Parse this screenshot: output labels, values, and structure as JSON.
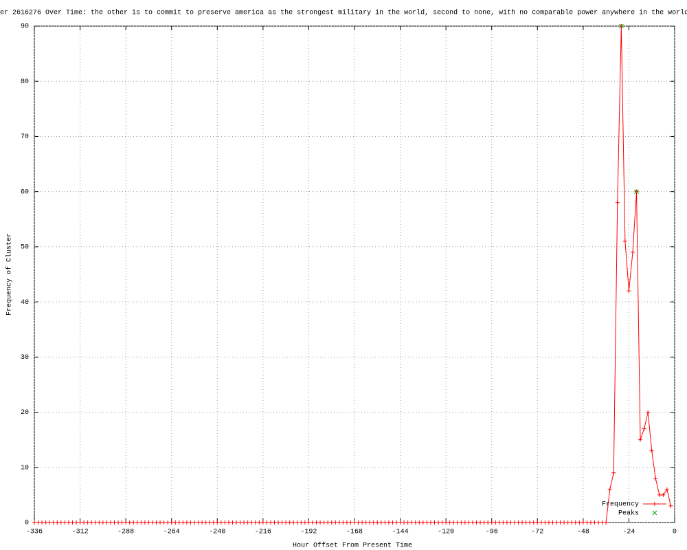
{
  "chart_data": {
    "type": "line",
    "title": "er 2616276 Over Time: the other is to commit to preserve america as the strongest military in the world, second to none, with no comparable power anywhere in the world",
    "x_label": "Hour Offset From Present Time",
    "y_label": "Frequency of Cluster",
    "xlim": [
      -336,
      0
    ],
    "ylim": [
      0,
      90
    ],
    "xticks": [
      -336,
      -312,
      -288,
      -264,
      -240,
      -216,
      -192,
      -168,
      -144,
      -120,
      -96,
      -72,
      -48,
      -24,
      0
    ],
    "yticks": [
      0,
      10,
      20,
      30,
      40,
      50,
      60,
      70,
      80,
      90
    ],
    "grid": true,
    "legend": "lower right",
    "series": [
      {
        "name": "Frequency",
        "color": "#ff0000",
        "marker": "plus",
        "x": [
          -336,
          -334,
          -332,
          -330,
          -328,
          -326,
          -324,
          -322,
          -320,
          -318,
          -316,
          -314,
          -312,
          -310,
          -308,
          -306,
          -304,
          -302,
          -300,
          -298,
          -296,
          -294,
          -292,
          -290,
          -288,
          -286,
          -284,
          -282,
          -280,
          -278,
          -276,
          -274,
          -272,
          -270,
          -268,
          -266,
          -264,
          -262,
          -260,
          -258,
          -256,
          -254,
          -252,
          -250,
          -248,
          -246,
          -244,
          -242,
          -240,
          -238,
          -236,
          -234,
          -232,
          -230,
          -228,
          -226,
          -224,
          -222,
          -220,
          -218,
          -216,
          -214,
          -212,
          -210,
          -208,
          -206,
          -204,
          -202,
          -200,
          -198,
          -196,
          -194,
          -192,
          -190,
          -188,
          -186,
          -184,
          -182,
          -180,
          -178,
          -176,
          -174,
          -172,
          -170,
          -168,
          -166,
          -164,
          -162,
          -160,
          -158,
          -156,
          -154,
          -152,
          -150,
          -148,
          -146,
          -144,
          -142,
          -140,
          -138,
          -136,
          -134,
          -132,
          -130,
          -128,
          -126,
          -124,
          -122,
          -120,
          -118,
          -116,
          -114,
          -112,
          -110,
          -108,
          -106,
          -104,
          -102,
          -100,
          -98,
          -96,
          -94,
          -92,
          -90,
          -88,
          -86,
          -84,
          -82,
          -80,
          -78,
          -76,
          -74,
          -72,
          -70,
          -68,
          -66,
          -64,
          -62,
          -60,
          -58,
          -56,
          -54,
          -52,
          -50,
          -48,
          -46,
          -44,
          -42,
          -40,
          -38,
          -36,
          -34,
          -32,
          -30,
          -28,
          -26,
          -24,
          -22,
          -20,
          -18,
          -16,
          -14,
          -12,
          -10,
          -8,
          -6,
          -4,
          -2
        ],
        "values": [
          0,
          0,
          0,
          0,
          0,
          0,
          0,
          0,
          0,
          0,
          0,
          0,
          0,
          0,
          0,
          0,
          0,
          0,
          0,
          0,
          0,
          0,
          0,
          0,
          0,
          0,
          0,
          0,
          0,
          0,
          0,
          0,
          0,
          0,
          0,
          0,
          0,
          0,
          0,
          0,
          0,
          0,
          0,
          0,
          0,
          0,
          0,
          0,
          0,
          0,
          0,
          0,
          0,
          0,
          0,
          0,
          0,
          0,
          0,
          0,
          0,
          0,
          0,
          0,
          0,
          0,
          0,
          0,
          0,
          0,
          0,
          0,
          0,
          0,
          0,
          0,
          0,
          0,
          0,
          0,
          0,
          0,
          0,
          0,
          0,
          0,
          0,
          0,
          0,
          0,
          0,
          0,
          0,
          0,
          0,
          0,
          0,
          0,
          0,
          0,
          0,
          0,
          0,
          0,
          0,
          0,
          0,
          0,
          0,
          0,
          0,
          0,
          0,
          0,
          0,
          0,
          0,
          0,
          0,
          0,
          0,
          0,
          0,
          0,
          0,
          0,
          0,
          0,
          0,
          0,
          0,
          0,
          0,
          0,
          0,
          0,
          0,
          0,
          0,
          0,
          0,
          0,
          0,
          0,
          0,
          0,
          0,
          0,
          0,
          0,
          0,
          6,
          9,
          58,
          90,
          51,
          42,
          49,
          60,
          15,
          17,
          20,
          13,
          8,
          5,
          5,
          6,
          3
        ]
      },
      {
        "name": "Peaks",
        "color": "#00a000",
        "marker": "cross",
        "x": [
          -28,
          -20
        ],
        "values": [
          90,
          60
        ]
      }
    ]
  }
}
